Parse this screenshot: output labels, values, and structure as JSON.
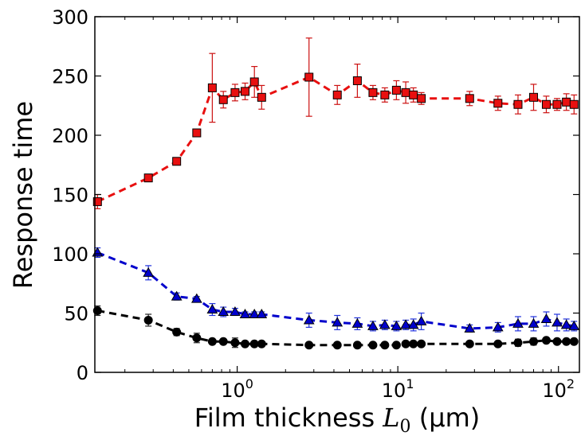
{
  "chart_data": {
    "type": "scatter",
    "title": "",
    "xlabel_text": "Film thickness ",
    "xlabel_math_base": "L",
    "xlabel_math_sub": "0",
    "xlabel_unit": " (μm)",
    "ylabel": "Response time",
    "xscale": "log",
    "xlim": [
      0.13,
      135
    ],
    "ylim": [
      0,
      300
    ],
    "yticks": [
      0,
      50,
      100,
      150,
      200,
      250,
      300
    ],
    "xticks": [
      {
        "value": 1,
        "base": "10",
        "exp": "0"
      },
      {
        "value": 10,
        "base": "10",
        "exp": "1"
      },
      {
        "value": 100,
        "base": "10",
        "exp": "2"
      }
    ],
    "grid": false,
    "legend": "none",
    "series": [
      {
        "marker": "square",
        "color": "#e81010",
        "err_color": "#cc1111",
        "x": [
          0.135,
          0.28,
          0.42,
          0.56,
          0.7,
          0.82,
          0.97,
          1.12,
          1.28,
          1.42,
          2.8,
          4.2,
          5.6,
          7.0,
          8.3,
          9.8,
          11.2,
          12.5,
          14.0,
          28,
          42,
          56,
          70,
          84,
          98,
          112,
          125
        ],
        "y": [
          144,
          164,
          178,
          202,
          240,
          230,
          236,
          237,
          245,
          232,
          249,
          234,
          246,
          236,
          234,
          238,
          236,
          234,
          231,
          231,
          227,
          226,
          232,
          226,
          226,
          228,
          226
        ],
        "err": [
          6,
          3,
          2,
          2,
          29,
          7,
          7,
          7,
          13,
          10,
          33,
          8,
          14,
          6,
          6,
          8,
          9,
          6,
          5,
          6,
          6,
          8,
          11,
          7,
          5,
          7,
          8
        ]
      },
      {
        "marker": "triangle",
        "color": "#0000cc",
        "err_color": "#2233dd",
        "x": [
          0.135,
          0.28,
          0.42,
          0.56,
          0.7,
          0.82,
          0.97,
          1.12,
          1.28,
          1.42,
          2.8,
          4.2,
          5.6,
          7.0,
          8.3,
          9.8,
          11.2,
          12.5,
          14.0,
          28,
          42,
          56,
          70,
          84,
          98,
          112,
          125
        ],
        "y": [
          101,
          84,
          64,
          62,
          53,
          51,
          51,
          49,
          49,
          49,
          44,
          42,
          41,
          39,
          40,
          39,
          40,
          40,
          43,
          37,
          38,
          41,
          41,
          45,
          42,
          40,
          39
        ],
        "err": [
          4,
          6,
          3,
          2,
          5,
          4,
          3,
          2,
          2,
          2,
          6,
          6,
          5,
          4,
          4,
          4,
          4,
          5,
          7,
          3,
          4,
          6,
          6,
          6,
          7,
          5,
          4
        ]
      },
      {
        "marker": "circle",
        "color": "#000000",
        "err_color": "#222222",
        "x": [
          0.135,
          0.28,
          0.42,
          0.56,
          0.7,
          0.82,
          0.97,
          1.12,
          1.28,
          1.42,
          2.8,
          4.2,
          5.6,
          7.0,
          8.3,
          9.8,
          11.2,
          12.5,
          14.0,
          28,
          42,
          56,
          70,
          84,
          98,
          112,
          125
        ],
        "y": [
          52,
          44,
          34,
          29,
          26,
          26,
          25,
          24,
          24,
          24,
          23,
          23,
          23,
          23,
          23,
          23,
          24,
          24,
          24,
          24,
          24,
          25,
          26,
          27,
          26,
          26,
          26
        ],
        "err": [
          4,
          5,
          3,
          4,
          2,
          2,
          4,
          1,
          1,
          1,
          1,
          1,
          1,
          1,
          1,
          1,
          1,
          1,
          1,
          1,
          1,
          3,
          3,
          2,
          1,
          1,
          1
        ]
      }
    ]
  }
}
